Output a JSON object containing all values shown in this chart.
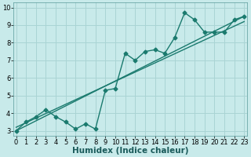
{
  "xlabel": "Humidex (Indice chaleur)",
  "x_scatter": [
    0,
    1,
    2,
    3,
    4,
    5,
    6,
    7,
    8,
    9,
    10,
    11,
    12,
    13,
    14,
    15,
    16,
    17,
    18,
    19,
    20,
    21,
    22,
    23
  ],
  "y_scatter": [
    3.0,
    3.5,
    3.8,
    4.2,
    3.8,
    3.5,
    3.1,
    3.4,
    3.1,
    5.3,
    5.4,
    7.4,
    7.0,
    7.5,
    7.6,
    7.4,
    8.3,
    9.7,
    9.3,
    8.6,
    8.6,
    8.6,
    9.3,
    9.5
  ],
  "trend1_x": [
    0,
    23
  ],
  "trend1_y": [
    3.0,
    9.5
  ],
  "trend2_x": [
    0,
    23
  ],
  "trend2_y": [
    3.2,
    9.2
  ],
  "line_color": "#1a7a6e",
  "bg_color": "#c8eaea",
  "grid_color": "#aad4d4",
  "xlim": [
    -0.3,
    23.3
  ],
  "ylim": [
    2.7,
    10.3
  ],
  "yticks": [
    3,
    4,
    5,
    6,
    7,
    8,
    9,
    10
  ],
  "xticks": [
    0,
    1,
    2,
    3,
    4,
    5,
    6,
    7,
    8,
    9,
    10,
    11,
    12,
    13,
    14,
    15,
    16,
    17,
    18,
    19,
    20,
    21,
    22,
    23
  ],
  "marker": "D",
  "markersize": 2.5,
  "linewidth": 1.0,
  "xlabel_fontsize": 7.5,
  "tick_fontsize": 6.0
}
